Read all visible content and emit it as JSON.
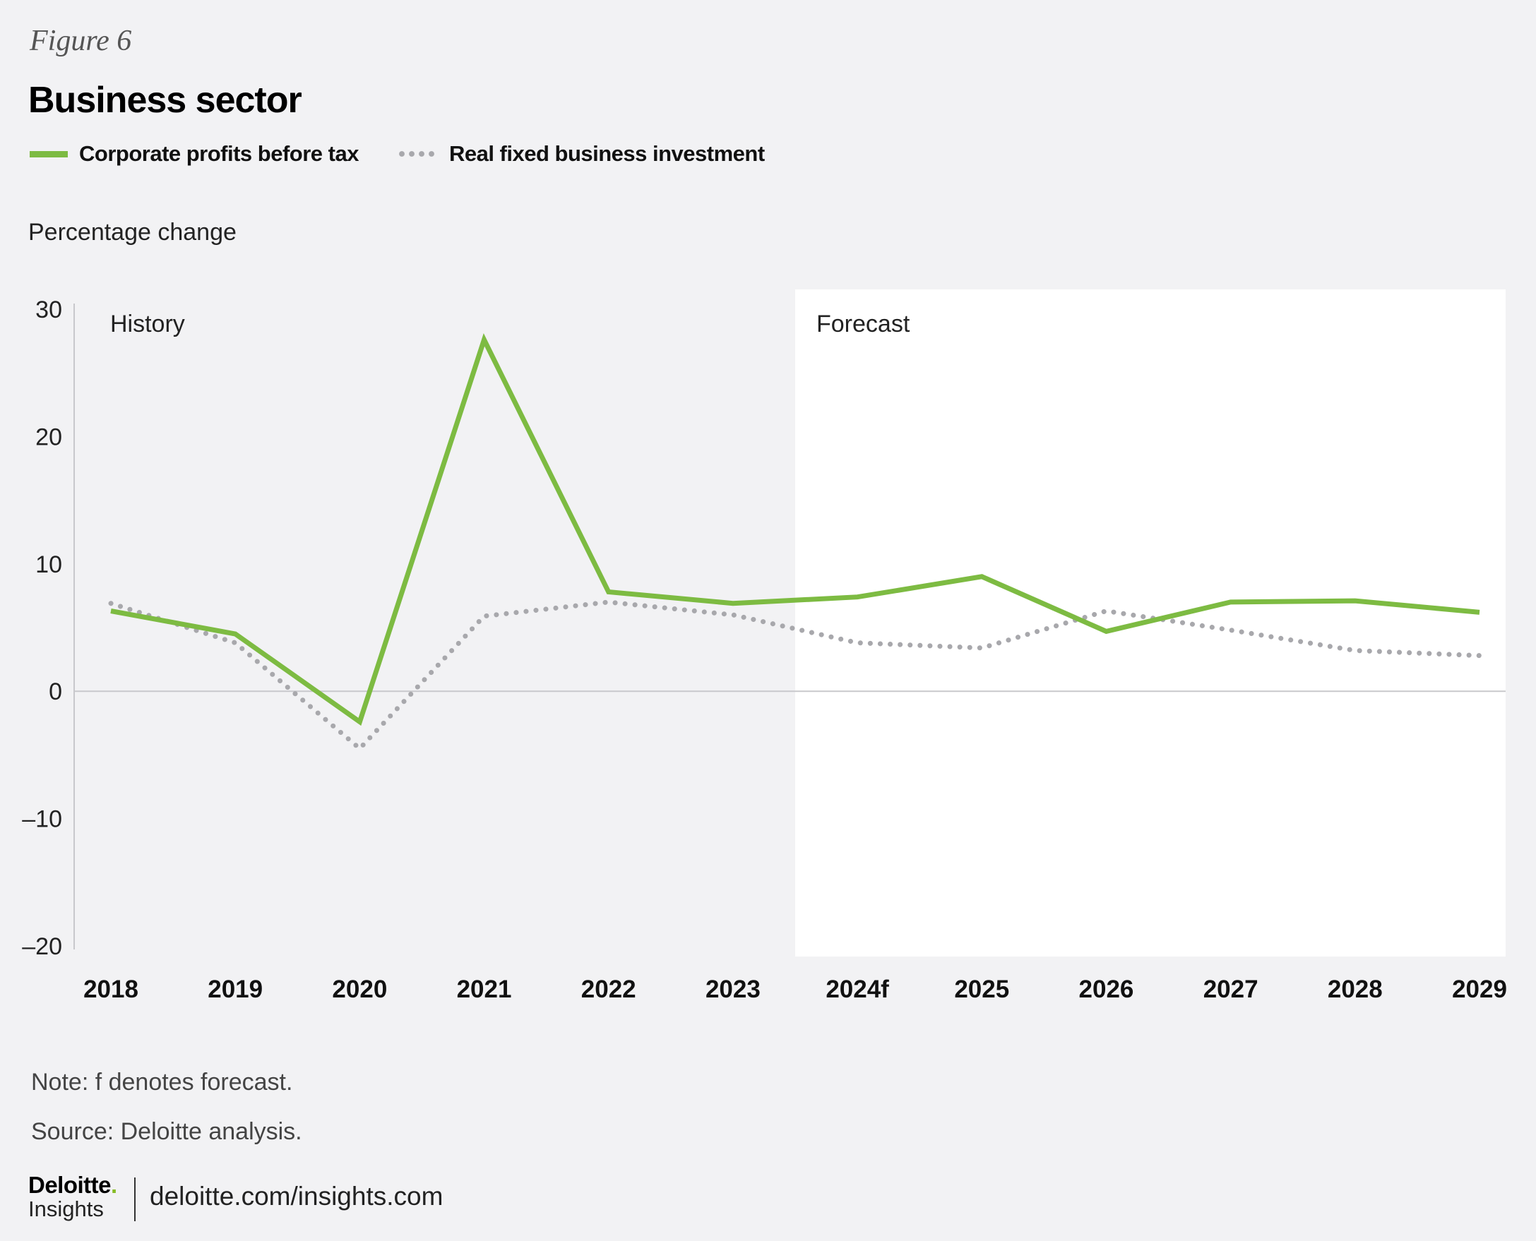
{
  "figure_label": "Figure 6",
  "title": "Business sector",
  "colors": {
    "profits": "#7dbb42",
    "investment": "#a8a8ac",
    "forecast_bg": "#ffffff",
    "background": "#f2f2f4"
  },
  "note": "Note: f denotes forecast.",
  "source": "Source: Deloitte analysis.",
  "footer": {
    "logo_top": "Deloitte",
    "logo_bottom": "Insights",
    "url": "deloitte.com/insights.com"
  },
  "chart_data": {
    "type": "line",
    "ylabel": "Percentage change",
    "ylim": [
      -20,
      30
    ],
    "yticks": [
      "30",
      "20",
      "10",
      "0",
      "–10",
      "–20"
    ],
    "ytick_values": [
      30,
      20,
      10,
      0,
      -10,
      -20
    ],
    "categories": [
      "2018",
      "2019",
      "2020",
      "2021",
      "2022",
      "2023",
      "2024f",
      "2025",
      "2026",
      "2027",
      "2028",
      "2029"
    ],
    "region_labels": {
      "history": "History",
      "forecast": "Forecast"
    },
    "forecast_start": "2024f",
    "legend_position": "top-left",
    "grid": false,
    "series": [
      {
        "name": "Corporate profits before tax",
        "style": "solid",
        "values": [
          6.3,
          4.5,
          -2.4,
          27.6,
          7.8,
          6.9,
          7.4,
          9.0,
          4.7,
          7.0,
          7.1,
          6.2
        ]
      },
      {
        "name": "Real fixed business investment",
        "style": "dotted",
        "values": [
          6.9,
          3.8,
          -4.5,
          5.9,
          7.0,
          6.0,
          3.8,
          3.4,
          6.3,
          4.8,
          3.2,
          2.8
        ]
      }
    ]
  }
}
